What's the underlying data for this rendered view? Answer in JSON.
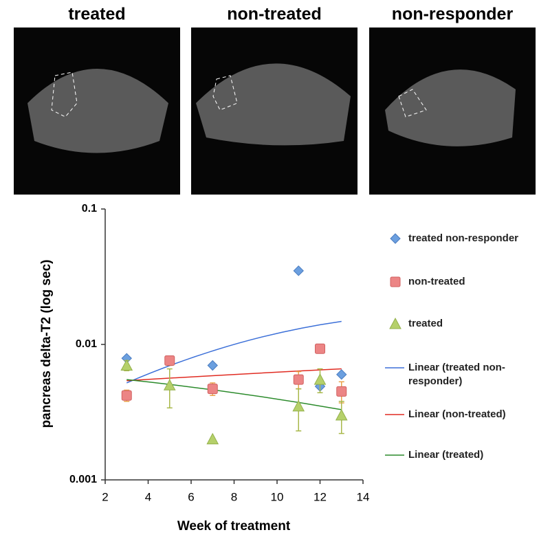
{
  "images": [
    {
      "label": "treated"
    },
    {
      "label": "non-treated"
    },
    {
      "label": "non-responder"
    }
  ],
  "chart_data": {
    "type": "scatter",
    "x_label": "Week of treatment",
    "y_label": "pancreas delta-T2 (log sec)",
    "xlim": [
      2,
      14
    ],
    "xticks": [
      2,
      4,
      6,
      8,
      10,
      12,
      14
    ],
    "ylim": [
      0.001,
      0.1
    ],
    "yticks": [
      0.001,
      0.01,
      0.1
    ],
    "y_log": true,
    "series": [
      {
        "name": "treated non-responder",
        "marker": "diamond",
        "color": "#6b9fdf",
        "x": [
          3,
          7,
          11,
          12,
          13
        ],
        "values": [
          0.0079,
          0.007,
          0.035,
          0.0049,
          0.006
        ],
        "errors": [
          null,
          null,
          null,
          null,
          null
        ]
      },
      {
        "name": "non-treated",
        "marker": "square",
        "color": "#ec8585",
        "x": [
          3,
          5,
          7,
          11,
          12,
          13
        ],
        "values": [
          0.0042,
          0.0076,
          0.0047,
          0.0055,
          0.0093,
          0.0045
        ],
        "errors": [
          0.0004,
          0.0006,
          0.0005,
          0.0008,
          0.0003,
          0.0008
        ]
      },
      {
        "name": "treated",
        "marker": "triangle",
        "color": "#b5d06a",
        "x": [
          3,
          5,
          7,
          11,
          12,
          13
        ],
        "values": [
          0.007,
          0.005,
          0.002,
          0.0035,
          0.0055,
          0.003
        ],
        "errors": [
          0.0006,
          0.0016,
          null,
          0.0012,
          0.0011,
          0.0008
        ]
      }
    ],
    "trendlines": [
      {
        "name": "Linear (treated non-responder)",
        "color": "#3b6fd8",
        "x": [
          3,
          13
        ],
        "values": [
          0.0052,
          0.0148
        ]
      },
      {
        "name": "Linear (non-treated)",
        "color": "#e02a20",
        "x": [
          3,
          13
        ],
        "values": [
          0.0054,
          0.0066
        ]
      },
      {
        "name": "Linear (treated)",
        "color": "#2a8a2a",
        "x": [
          3,
          13
        ],
        "values": [
          0.0055,
          0.0033
        ]
      }
    ]
  }
}
